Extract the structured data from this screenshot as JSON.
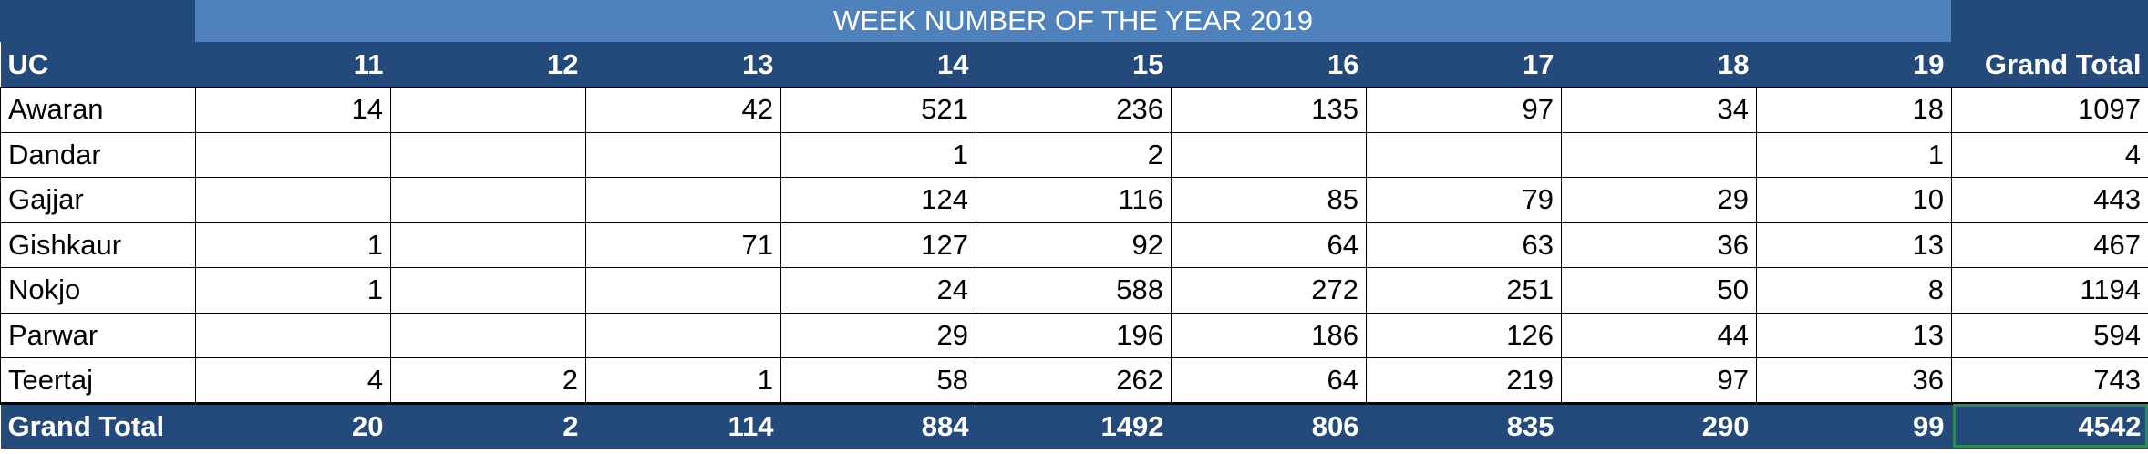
{
  "banner": {
    "title": "WEEK NUMBER OF THE YEAR 2019"
  },
  "header": {
    "uc_label": "UC",
    "weeks": [
      "11",
      "12",
      "13",
      "14",
      "15",
      "16",
      "17",
      "18",
      "19"
    ],
    "grand_total_label": "Grand Total"
  },
  "rows": [
    {
      "uc": "Awaran",
      "cells": [
        "14",
        "",
        "42",
        "521",
        "236",
        "135",
        "97",
        "34",
        "18"
      ],
      "total": "1097"
    },
    {
      "uc": "Dandar",
      "cells": [
        "",
        "",
        "",
        "1",
        "2",
        "",
        "",
        "",
        "1"
      ],
      "total": "4"
    },
    {
      "uc": "Gajjar",
      "cells": [
        "",
        "",
        "",
        "124",
        "116",
        "85",
        "79",
        "29",
        "10"
      ],
      "total": "443"
    },
    {
      "uc": "Gishkaur",
      "cells": [
        "1",
        "",
        "71",
        "127",
        "92",
        "64",
        "63",
        "36",
        "13"
      ],
      "total": "467"
    },
    {
      "uc": "Nokjo",
      "cells": [
        "1",
        "",
        "",
        "24",
        "588",
        "272",
        "251",
        "50",
        "8"
      ],
      "total": "1194"
    },
    {
      "uc": "Parwar",
      "cells": [
        "",
        "",
        "",
        "29",
        "196",
        "186",
        "126",
        "44",
        "13"
      ],
      "total": "594"
    },
    {
      "uc": "Teertaj",
      "cells": [
        "4",
        "2",
        "1",
        "58",
        "262",
        "64",
        "219",
        "97",
        "36"
      ],
      "total": "743"
    }
  ],
  "footer": {
    "label": "Grand Total",
    "cells": [
      "20",
      "2",
      "114",
      "884",
      "1492",
      "806",
      "835",
      "290",
      "99"
    ],
    "total": "4542"
  },
  "colors": {
    "header_navy": "#234a7a",
    "banner_blue": "#4f81bd",
    "selection_green": "#2e8b57"
  }
}
